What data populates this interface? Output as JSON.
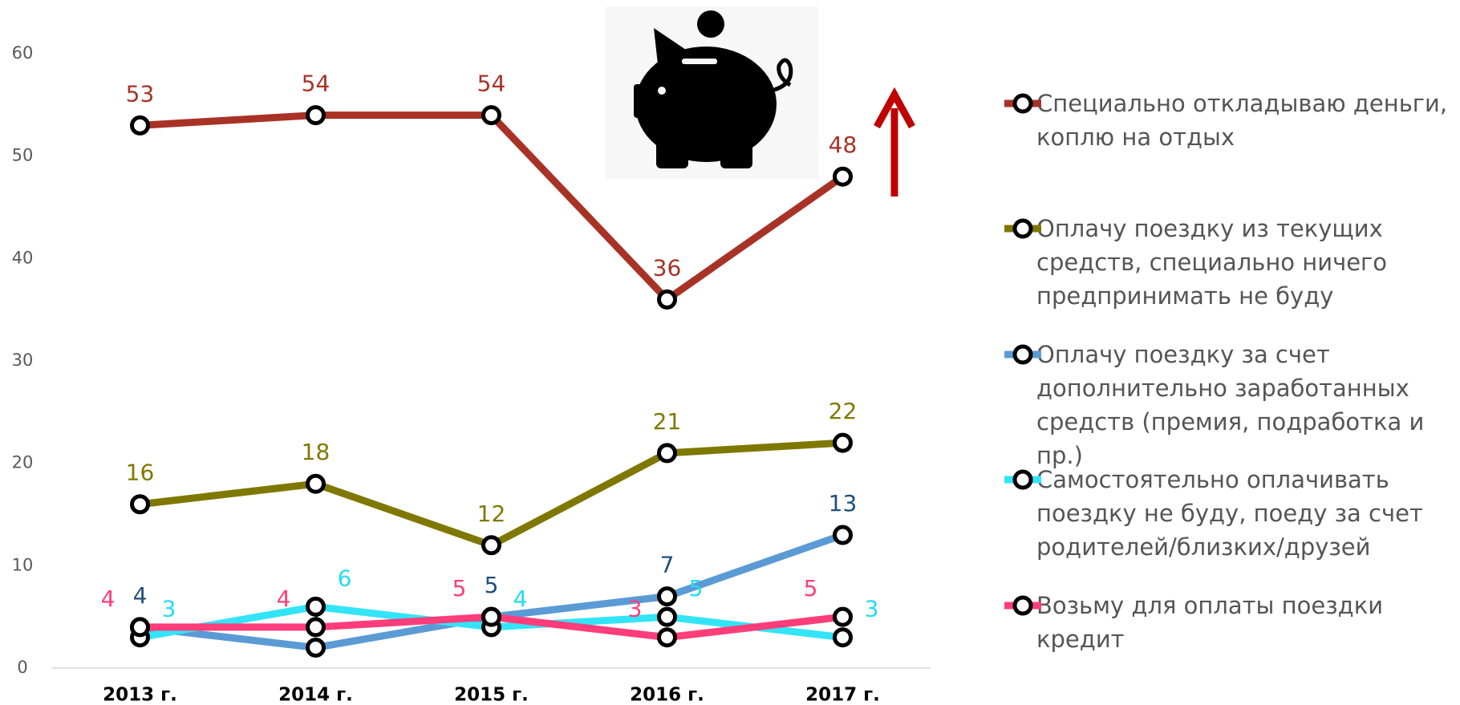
{
  "chart_data": {
    "type": "line",
    "categories": [
      "2013 г.",
      "2014 г.",
      "2015 г.",
      "2016 г.",
      "2017 г."
    ],
    "ylim": [
      0,
      60
    ],
    "yticks": [
      0,
      10,
      20,
      30,
      40,
      50,
      60
    ],
    "series": [
      {
        "name": "Специально откладываю деньги, коплю на отдых",
        "color": "#a93226",
        "label_color": "#a93226",
        "values": [
          53,
          54,
          54,
          36,
          48
        ]
      },
      {
        "name": "Оплачу поездку из текущих средств, специально ничего предпринимать не буду",
        "color": "#7f7800",
        "label_color": "#7f7800",
        "values": [
          16,
          18,
          12,
          21,
          22
        ]
      },
      {
        "name": "Оплачу поездку за счет дополнительно заработанных средств (премия, подработка и пр.)",
        "color": "#5b9bd5",
        "label_color": "#1f4e79",
        "values": [
          4,
          2,
          5,
          7,
          13
        ]
      },
      {
        "name": "Самостоятельно оплачивать поездку не буду, поеду за счет родителей/близких/друзей",
        "color": "#33e4f7",
        "label_color": "#22ddf2",
        "values": [
          3,
          6,
          4,
          5,
          3
        ]
      },
      {
        "name": "Возьму для оплаты поездки кредит",
        "color": "#ff3d7a",
        "label_color": "#ff3d7a",
        "values": [
          4,
          4,
          5,
          3,
          5
        ]
      }
    ]
  }
}
